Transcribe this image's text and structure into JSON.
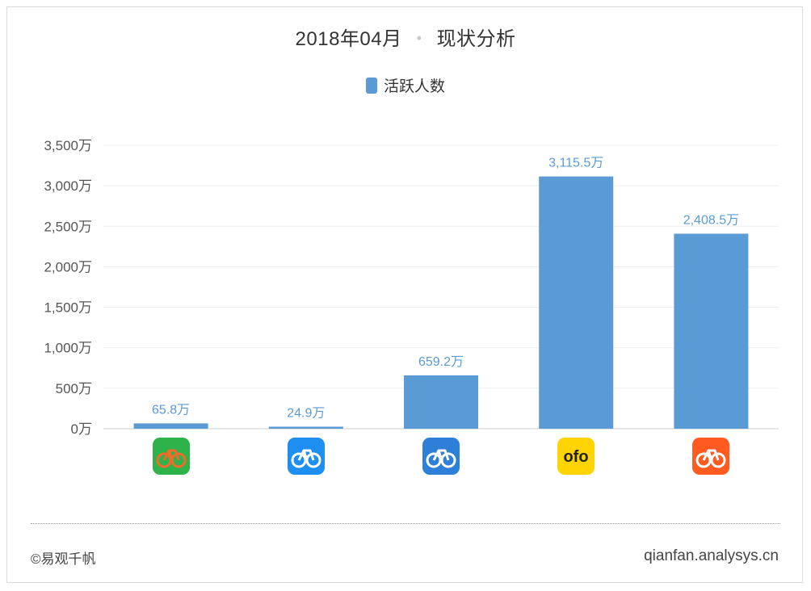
{
  "header": {
    "date": "2018年04月",
    "separator": "•",
    "subtitle": "现状分析"
  },
  "legend": {
    "label": "活跃人数",
    "color": "#5b9bd5"
  },
  "chart_data": {
    "type": "bar",
    "title": "2018年04月 · 现状分析",
    "unit_suffix": "万",
    "categories": [
      "app-green",
      "app-blue",
      "app-blue-2",
      "ofo",
      "mobike"
    ],
    "series": [
      {
        "name": "活跃人数",
        "values": [
          65.8,
          24.9,
          659.2,
          3115.5,
          2408.5
        ]
      }
    ],
    "data_labels": [
      "65.8万",
      "24.9万",
      "659.2万",
      "3,115.5万",
      "2,408.5万"
    ],
    "y_ticks": [
      "0万",
      "500万",
      "1,000万",
      "1,500万",
      "2,000万",
      "2,500万",
      "3,000万",
      "3,500万"
    ],
    "ylim": [
      0,
      3500
    ],
    "grid": true,
    "legend_position": "top-center"
  },
  "category_icons": [
    {
      "name": "green-bike-app-icon",
      "bg": "#2eb34a",
      "accent": "#f36b2b",
      "label": ""
    },
    {
      "name": "blue-bike-app-icon",
      "bg": "#1e8ff0",
      "accent": "#ffffff",
      "label": ""
    },
    {
      "name": "blue-bike-app-icon-2",
      "bg": "#2d7fd8",
      "accent": "#ffffff",
      "label": ""
    },
    {
      "name": "ofo-app-icon",
      "bg": "#ffd400",
      "accent": "#222222",
      "label": "ofo"
    },
    {
      "name": "mobike-app-icon",
      "bg": "#ff5a1f",
      "accent": "#ffffff",
      "label": ""
    }
  ],
  "footer": {
    "left": "©易观千帆",
    "right": "qianfan.analysys.cn"
  }
}
